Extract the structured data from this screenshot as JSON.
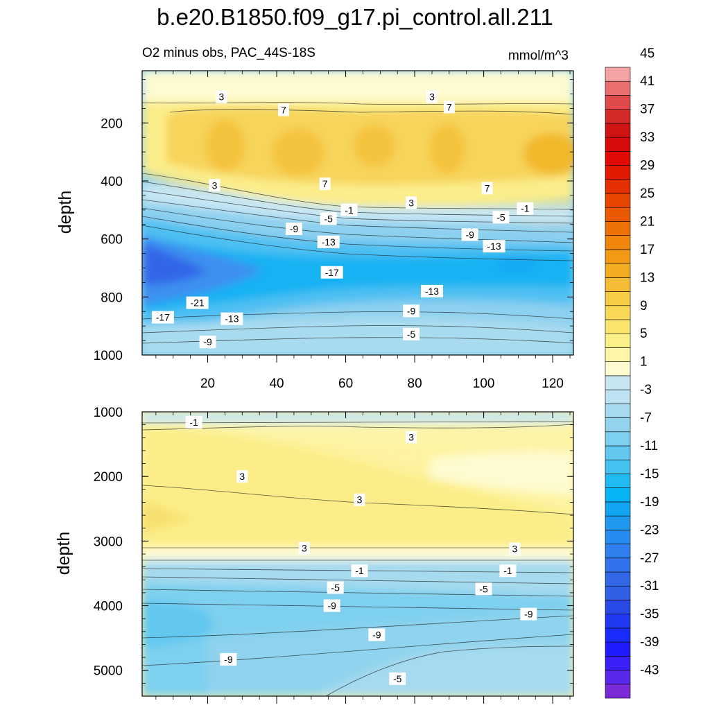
{
  "chart_data": {
    "type": "contour",
    "title": "b.e20.B1850.f09_g17.pi_control.all.211",
    "subtitle_left": "O2 minus obs, PAC_44S-18S",
    "subtitle_right": "mmol/m^3",
    "colorbar": {
      "levels": [
        -45,
        -43,
        -41,
        -39,
        -37,
        -35,
        -33,
        -31,
        -29,
        -27,
        -25,
        -23,
        -21,
        -19,
        -17,
        -15,
        -13,
        -11,
        -9,
        -7,
        -5,
        -3,
        -1,
        1,
        3,
        5,
        7,
        9,
        11,
        13,
        15,
        17,
        19,
        21,
        23,
        25,
        27,
        29,
        31,
        33,
        35,
        37,
        39,
        41,
        43,
        45
      ],
      "labels": [
        "45",
        "41",
        "37",
        "33",
        "29",
        "25",
        "21",
        "17",
        "13",
        "9",
        "5",
        "1",
        "-3",
        "-7",
        "-11",
        "-15",
        "-19",
        "-23",
        "-27",
        "-31",
        "-35",
        "-39",
        "-43"
      ],
      "colors": [
        "#7b2bd6",
        "#5a28ea",
        "#3a1ff8",
        "#1f1cff",
        "#1a2bff",
        "#2038f0",
        "#2a4ae8",
        "#3060e6",
        "#3268e8",
        "#3272ec",
        "#2f7fef",
        "#278cf0",
        "#1f98f0",
        "#12a5f2",
        "#05b4f5",
        "#22baf2",
        "#45c2f0",
        "#62c8f0",
        "#7ed0ef",
        "#93d3ee",
        "#a6daef",
        "#bde3f2",
        "#c8e6f2",
        "#fefcd0",
        "#fdf6a8",
        "#fbef88",
        "#fae46e",
        "#f8d855",
        "#f7cc45",
        "#f5bd35",
        "#f3ad22",
        "#f29a16",
        "#f0860c",
        "#ed7006",
        "#ea5a03",
        "#e84402",
        "#e52e01",
        "#e31a01",
        "#e20a05",
        "#d90a0a",
        "#cf1414",
        "#d42a2a",
        "#e04a4a",
        "#ea7070",
        "#f4a4a4"
      ]
    },
    "top_panel": {
      "xlim": [
        1,
        126
      ],
      "ylim": [
        1000,
        20
      ],
      "ylabel": "depth",
      "xticks": [
        "20",
        "40",
        "60",
        "80",
        "100",
        "120"
      ],
      "yticks": [
        "200",
        "400",
        "600",
        "800",
        "1000"
      ],
      "contour_labels": [
        {
          "t": "3",
          "x": 24,
          "d": 110
        },
        {
          "t": "3",
          "x": 85,
          "d": 110
        },
        {
          "t": "7",
          "x": 42,
          "d": 155
        },
        {
          "t": "7",
          "x": 90,
          "d": 145
        },
        {
          "t": "3",
          "x": 22,
          "d": 415
        },
        {
          "t": "7",
          "x": 54,
          "d": 410
        },
        {
          "t": "7",
          "x": 101,
          "d": 425
        },
        {
          "t": "3",
          "x": 79,
          "d": 475
        },
        {
          "t": "-1",
          "x": 61,
          "d": 500
        },
        {
          "t": "-1",
          "x": 112,
          "d": 495
        },
        {
          "t": "-5",
          "x": 55,
          "d": 530
        },
        {
          "t": "-5",
          "x": 105,
          "d": 525
        },
        {
          "t": "-9",
          "x": 45,
          "d": 565
        },
        {
          "t": "-9",
          "x": 96,
          "d": 585
        },
        {
          "t": "-13",
          "x": 55,
          "d": 610
        },
        {
          "t": "-13",
          "x": 103,
          "d": 625
        },
        {
          "t": "-17",
          "x": 56,
          "d": 715
        },
        {
          "t": "-13",
          "x": 85,
          "d": 780
        },
        {
          "t": "-21",
          "x": 17,
          "d": 820
        },
        {
          "t": "-17",
          "x": 7,
          "d": 870
        },
        {
          "t": "-13",
          "x": 27,
          "d": 875
        },
        {
          "t": "-9",
          "x": 79,
          "d": 848
        },
        {
          "t": "-5",
          "x": 79,
          "d": 928
        },
        {
          "t": "-9",
          "x": 20,
          "d": 955
        }
      ]
    },
    "bottom_panel": {
      "xlim": [
        1,
        126
      ],
      "ylim": [
        5400,
        1000
      ],
      "ylabel": "depth",
      "yticks": [
        "1000",
        "2000",
        "3000",
        "4000",
        "5000"
      ],
      "contour_labels": [
        {
          "t": "-1",
          "x": 16,
          "d": 1160
        },
        {
          "t": "3",
          "x": 79,
          "d": 1390
        },
        {
          "t": "3",
          "x": 30,
          "d": 2000
        },
        {
          "t": "3",
          "x": 64,
          "d": 2360
        },
        {
          "t": "3",
          "x": 48,
          "d": 3110
        },
        {
          "t": "3",
          "x": 109,
          "d": 3120
        },
        {
          "t": "-1",
          "x": 64,
          "d": 3460
        },
        {
          "t": "-1",
          "x": 107,
          "d": 3460
        },
        {
          "t": "-5",
          "x": 57,
          "d": 3720
        },
        {
          "t": "-5",
          "x": 100,
          "d": 3740
        },
        {
          "t": "-9",
          "x": 56,
          "d": 4000
        },
        {
          "t": "-9",
          "x": 113,
          "d": 4130
        },
        {
          "t": "-9",
          "x": 69,
          "d": 4450
        },
        {
          "t": "-9",
          "x": 26,
          "d": 4830
        },
        {
          "t": "-5",
          "x": 75,
          "d": 5130
        }
      ]
    }
  }
}
